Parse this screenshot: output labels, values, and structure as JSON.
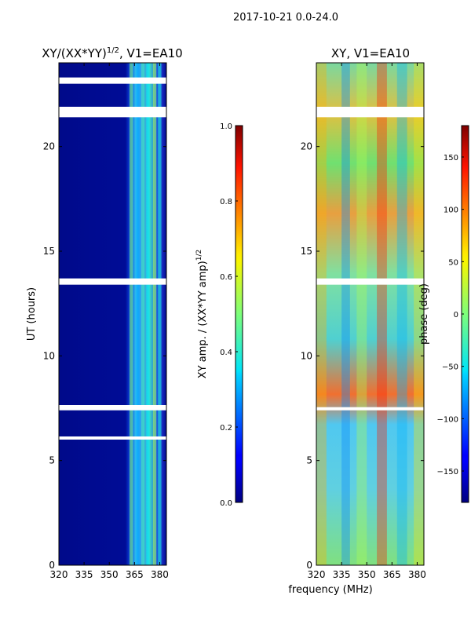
{
  "suptitle": "2017-10-21 0.0-24.0",
  "shared_xlabel": "frequency (MHz)",
  "chart_data": [
    {
      "type": "heatmap",
      "title_main": "XY/(XX*YY)",
      "title_exp": "1/2",
      "title_suffix": ", V1=EA10",
      "ylabel": "UT (hours)",
      "xlim": [
        320,
        384
      ],
      "ylim": [
        0,
        24
      ],
      "xticks": [
        "320",
        "335",
        "350",
        "365",
        "380"
      ],
      "xtick_values": [
        320,
        335,
        350,
        365,
        380
      ],
      "yticks": [
        "0",
        "5",
        "10",
        "15",
        "20"
      ],
      "ytick_values": [
        0,
        5,
        10,
        15,
        20
      ],
      "colorbar": {
        "label_main": "XY amp. / (XX*YY amp)",
        "label_exp": "1/2",
        "range": [
          0.0,
          1.0
        ],
        "ticks": [
          "0.0",
          "0.2",
          "0.4",
          "0.6",
          "0.8",
          "1.0"
        ],
        "tick_values": [
          0.0,
          0.2,
          0.4,
          0.6,
          0.8,
          1.0
        ]
      },
      "gap_hours": [
        [
          23.0,
          23.3
        ],
        [
          21.4,
          21.9
        ],
        [
          13.4,
          13.7
        ],
        [
          7.4,
          7.65
        ],
        [
          6.0,
          6.15
        ]
      ]
    },
    {
      "type": "heatmap",
      "title": "XY, V1=EA10",
      "xlim": [
        320,
        384
      ],
      "ylim": [
        0,
        24
      ],
      "xticks": [
        "320",
        "335",
        "350",
        "365",
        "380"
      ],
      "xtick_values": [
        320,
        335,
        350,
        365,
        380
      ],
      "yticks": [
        "0",
        "5",
        "10",
        "15",
        "20"
      ],
      "ytick_values": [
        0,
        5,
        10,
        15,
        20
      ],
      "colorbar": {
        "label": "phase (deg)",
        "range": [
          -180,
          180
        ],
        "ticks": [
          "−150",
          "−100",
          "−50",
          "0",
          "50",
          "100",
          "150"
        ],
        "tick_values": [
          -150,
          -100,
          -50,
          0,
          50,
          100,
          150
        ]
      },
      "gap_hours": [
        [
          21.4,
          21.9
        ],
        [
          13.4,
          13.7
        ],
        [
          7.4,
          7.55
        ]
      ]
    }
  ]
}
